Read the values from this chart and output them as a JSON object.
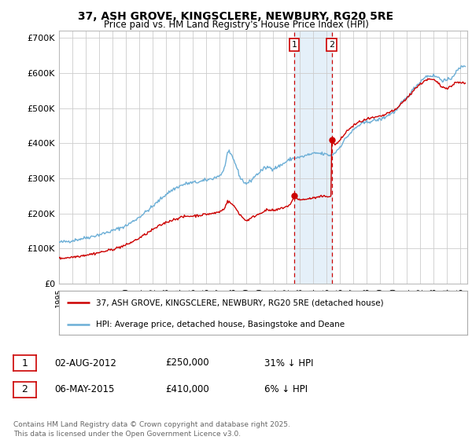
{
  "title": "37, ASH GROVE, KINGSCLERE, NEWBURY, RG20 5RE",
  "subtitle": "Price paid vs. HM Land Registry's House Price Index (HPI)",
  "ylim": [
    0,
    720000
  ],
  "yticks": [
    0,
    100000,
    200000,
    300000,
    400000,
    500000,
    600000,
    700000
  ],
  "ytick_labels": [
    "£0",
    "£100K",
    "£200K",
    "£300K",
    "£400K",
    "£500K",
    "£600K",
    "£700K"
  ],
  "xlim_start": 1995.0,
  "xlim_end": 2025.5,
  "hpi_color": "#6baed6",
  "property_color": "#cc0000",
  "event1_date": 2012.583,
  "event1_price": 250000,
  "event2_date": 2015.37,
  "event2_price": 410000,
  "legend_property": "37, ASH GROVE, KINGSCLERE, NEWBURY, RG20 5RE (detached house)",
  "legend_hpi": "HPI: Average price, detached house, Basingstoke and Deane",
  "table_row1": [
    "1",
    "02-AUG-2012",
    "£250,000",
    "31% ↓ HPI"
  ],
  "table_row2": [
    "2",
    "06-MAY-2015",
    "£410,000",
    "6% ↓ HPI"
  ],
  "footnote": "Contains HM Land Registry data © Crown copyright and database right 2025.\nThis data is licensed under the Open Government Licence v3.0.",
  "background_color": "#ffffff",
  "grid_color": "#cccccc",
  "shade_color": "#daeaf7",
  "hpi_keypoints": [
    [
      1995.0,
      118000
    ],
    [
      1995.5,
      120000
    ],
    [
      1996.0,
      123000
    ],
    [
      1996.5,
      127000
    ],
    [
      1997.0,
      131000
    ],
    [
      1997.5,
      135000
    ],
    [
      1998.0,
      140000
    ],
    [
      1998.5,
      145000
    ],
    [
      1999.0,
      151000
    ],
    [
      1999.5,
      158000
    ],
    [
      2000.0,
      165000
    ],
    [
      2000.5,
      177000
    ],
    [
      2001.0,
      190000
    ],
    [
      2001.5,
      205000
    ],
    [
      2002.0,
      220000
    ],
    [
      2002.5,
      238000
    ],
    [
      2003.0,
      255000
    ],
    [
      2003.5,
      268000
    ],
    [
      2004.0,
      278000
    ],
    [
      2004.5,
      285000
    ],
    [
      2005.0,
      288000
    ],
    [
      2005.5,
      290000
    ],
    [
      2006.0,
      295000
    ],
    [
      2006.5,
      300000
    ],
    [
      2007.0,
      308000
    ],
    [
      2007.3,
      320000
    ],
    [
      2007.6,
      375000
    ],
    [
      2007.9,
      365000
    ],
    [
      2008.2,
      340000
    ],
    [
      2008.5,
      305000
    ],
    [
      2008.8,
      290000
    ],
    [
      2009.0,
      285000
    ],
    [
      2009.3,
      292000
    ],
    [
      2009.6,
      305000
    ],
    [
      2010.0,
      318000
    ],
    [
      2010.3,
      328000
    ],
    [
      2010.6,
      332000
    ],
    [
      2011.0,
      328000
    ],
    [
      2011.3,
      332000
    ],
    [
      2011.6,
      338000
    ],
    [
      2012.0,
      348000
    ],
    [
      2012.3,
      355000
    ],
    [
      2012.6,
      358000
    ],
    [
      2013.0,
      360000
    ],
    [
      2013.3,
      363000
    ],
    [
      2013.6,
      367000
    ],
    [
      2014.0,
      370000
    ],
    [
      2014.3,
      372000
    ],
    [
      2014.6,
      370000
    ],
    [
      2015.0,
      368000
    ],
    [
      2015.3,
      365000
    ],
    [
      2015.6,
      372000
    ],
    [
      2016.0,
      390000
    ],
    [
      2016.3,
      408000
    ],
    [
      2016.6,
      422000
    ],
    [
      2017.0,
      438000
    ],
    [
      2017.3,
      448000
    ],
    [
      2017.6,
      455000
    ],
    [
      2018.0,
      460000
    ],
    [
      2018.3,
      463000
    ],
    [
      2018.6,
      465000
    ],
    [
      2019.0,
      468000
    ],
    [
      2019.3,
      473000
    ],
    [
      2019.6,
      480000
    ],
    [
      2020.0,
      488000
    ],
    [
      2020.3,
      498000
    ],
    [
      2020.6,
      515000
    ],
    [
      2021.0,
      530000
    ],
    [
      2021.3,
      545000
    ],
    [
      2021.6,
      560000
    ],
    [
      2022.0,
      575000
    ],
    [
      2022.3,
      588000
    ],
    [
      2022.6,
      592000
    ],
    [
      2023.0,
      592000
    ],
    [
      2023.3,
      588000
    ],
    [
      2023.6,
      580000
    ],
    [
      2024.0,
      578000
    ],
    [
      2024.3,
      585000
    ],
    [
      2024.6,
      600000
    ],
    [
      2024.9,
      612000
    ],
    [
      2025.1,
      618000
    ],
    [
      2025.3,
      622000
    ]
  ],
  "prop_keypoints": [
    [
      1995.0,
      72000
    ],
    [
      1995.5,
      74000
    ],
    [
      1996.0,
      76000
    ],
    [
      1996.5,
      79000
    ],
    [
      1997.0,
      82000
    ],
    [
      1997.5,
      85000
    ],
    [
      1998.0,
      89000
    ],
    [
      1998.5,
      93000
    ],
    [
      1999.0,
      98000
    ],
    [
      1999.5,
      104000
    ],
    [
      2000.0,
      110000
    ],
    [
      2000.5,
      120000
    ],
    [
      2001.0,
      130000
    ],
    [
      2001.5,
      142000
    ],
    [
      2002.0,
      154000
    ],
    [
      2002.5,
      165000
    ],
    [
      2003.0,
      175000
    ],
    [
      2003.5,
      182000
    ],
    [
      2004.0,
      188000
    ],
    [
      2004.5,
      192000
    ],
    [
      2005.0,
      193000
    ],
    [
      2005.5,
      195000
    ],
    [
      2006.0,
      198000
    ],
    [
      2006.5,
      200000
    ],
    [
      2007.0,
      205000
    ],
    [
      2007.3,
      212000
    ],
    [
      2007.6,
      235000
    ],
    [
      2007.9,
      228000
    ],
    [
      2008.2,
      215000
    ],
    [
      2008.5,
      198000
    ],
    [
      2008.8,
      185000
    ],
    [
      2009.0,
      180000
    ],
    [
      2009.3,
      185000
    ],
    [
      2009.6,
      193000
    ],
    [
      2010.0,
      200000
    ],
    [
      2010.3,
      207000
    ],
    [
      2010.6,
      210000
    ],
    [
      2011.0,
      208000
    ],
    [
      2011.3,
      210000
    ],
    [
      2011.6,
      215000
    ],
    [
      2012.0,
      220000
    ],
    [
      2012.3,
      225000
    ],
    [
      2012.583,
      250000
    ],
    [
      2013.0,
      238000
    ],
    [
      2013.3,
      240000
    ],
    [
      2013.6,
      242000
    ],
    [
      2014.0,
      244000
    ],
    [
      2014.3,
      246000
    ],
    [
      2014.6,
      248000
    ],
    [
      2015.35,
      250000
    ],
    [
      2015.36,
      410000
    ],
    [
      2015.6,
      395000
    ],
    [
      2016.0,
      408000
    ],
    [
      2016.3,
      425000
    ],
    [
      2016.6,
      438000
    ],
    [
      2017.0,
      450000
    ],
    [
      2017.3,
      458000
    ],
    [
      2017.6,
      463000
    ],
    [
      2018.0,
      468000
    ],
    [
      2018.3,
      471000
    ],
    [
      2018.6,
      473000
    ],
    [
      2019.0,
      476000
    ],
    [
      2019.3,
      480000
    ],
    [
      2019.6,
      487000
    ],
    [
      2020.0,
      492000
    ],
    [
      2020.3,
      500000
    ],
    [
      2020.6,
      515000
    ],
    [
      2021.0,
      528000
    ],
    [
      2021.3,
      542000
    ],
    [
      2021.6,
      556000
    ],
    [
      2022.0,
      568000
    ],
    [
      2022.3,
      578000
    ],
    [
      2022.6,
      582000
    ],
    [
      2023.0,
      580000
    ],
    [
      2023.3,
      572000
    ],
    [
      2023.6,
      560000
    ],
    [
      2024.0,
      558000
    ],
    [
      2024.3,
      562000
    ],
    [
      2024.6,
      572000
    ],
    [
      2024.9,
      575000
    ],
    [
      2025.1,
      572000
    ],
    [
      2025.3,
      570000
    ]
  ]
}
